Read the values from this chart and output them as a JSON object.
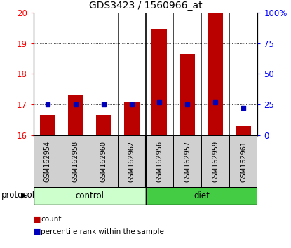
{
  "title": "GDS3423 / 1560966_at",
  "samples": [
    "GSM162954",
    "GSM162958",
    "GSM162960",
    "GSM162962",
    "GSM162956",
    "GSM162957",
    "GSM162959",
    "GSM162961"
  ],
  "count_values": [
    16.65,
    17.3,
    16.65,
    17.1,
    19.45,
    18.65,
    19.98,
    16.3
  ],
  "percentile_values": [
    25,
    25,
    25,
    25,
    27,
    25,
    27,
    22
  ],
  "ylim_left": [
    16,
    20
  ],
  "ylim_right": [
    0,
    100
  ],
  "yticks_left": [
    16,
    17,
    18,
    19,
    20
  ],
  "yticks_right": [
    0,
    25,
    50,
    75,
    100
  ],
  "ytick_labels_right": [
    "0",
    "25",
    "50",
    "75",
    "100%"
  ],
  "bar_color": "#bb0000",
  "square_color": "#0000bb",
  "control_color_light": "#ccffcc",
  "diet_color": "#44cc44",
  "bg_color": "#ffffff",
  "label_bg": "#d0d0d0",
  "bar_width": 0.55
}
